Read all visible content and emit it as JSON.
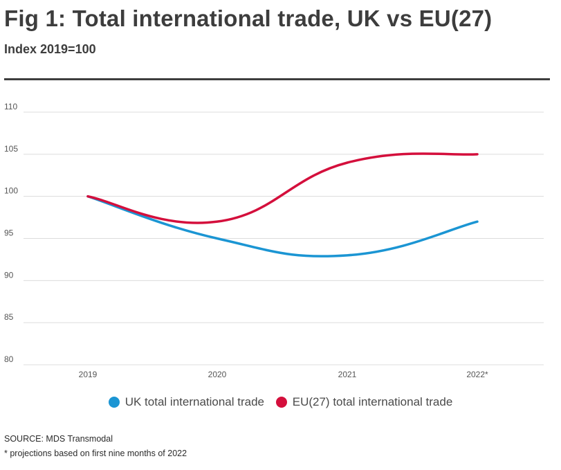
{
  "header": {
    "title": "Fig 1: Total international trade, UK vs EU(27)",
    "subtitle": "Index 2019=100"
  },
  "chart_data": {
    "type": "line",
    "categories": [
      "2019",
      "2020",
      "2021",
      "2022*"
    ],
    "series": [
      {
        "name": "UK total international trade",
        "color": "#1b95d3",
        "values": [
          100,
          95,
          93,
          97
        ]
      },
      {
        "name": "EU(27) total international trade",
        "color": "#d40f3c",
        "values": [
          100,
          97,
          104,
          105
        ]
      }
    ],
    "yticks": [
      80,
      85,
      90,
      95,
      100,
      105,
      110
    ],
    "ylim": [
      80,
      110
    ],
    "grid": true,
    "legend_position": "bottom"
  },
  "footer": {
    "source": "SOURCE: MDS Transmodal",
    "note": "* projections based on first nine months of 2022"
  }
}
